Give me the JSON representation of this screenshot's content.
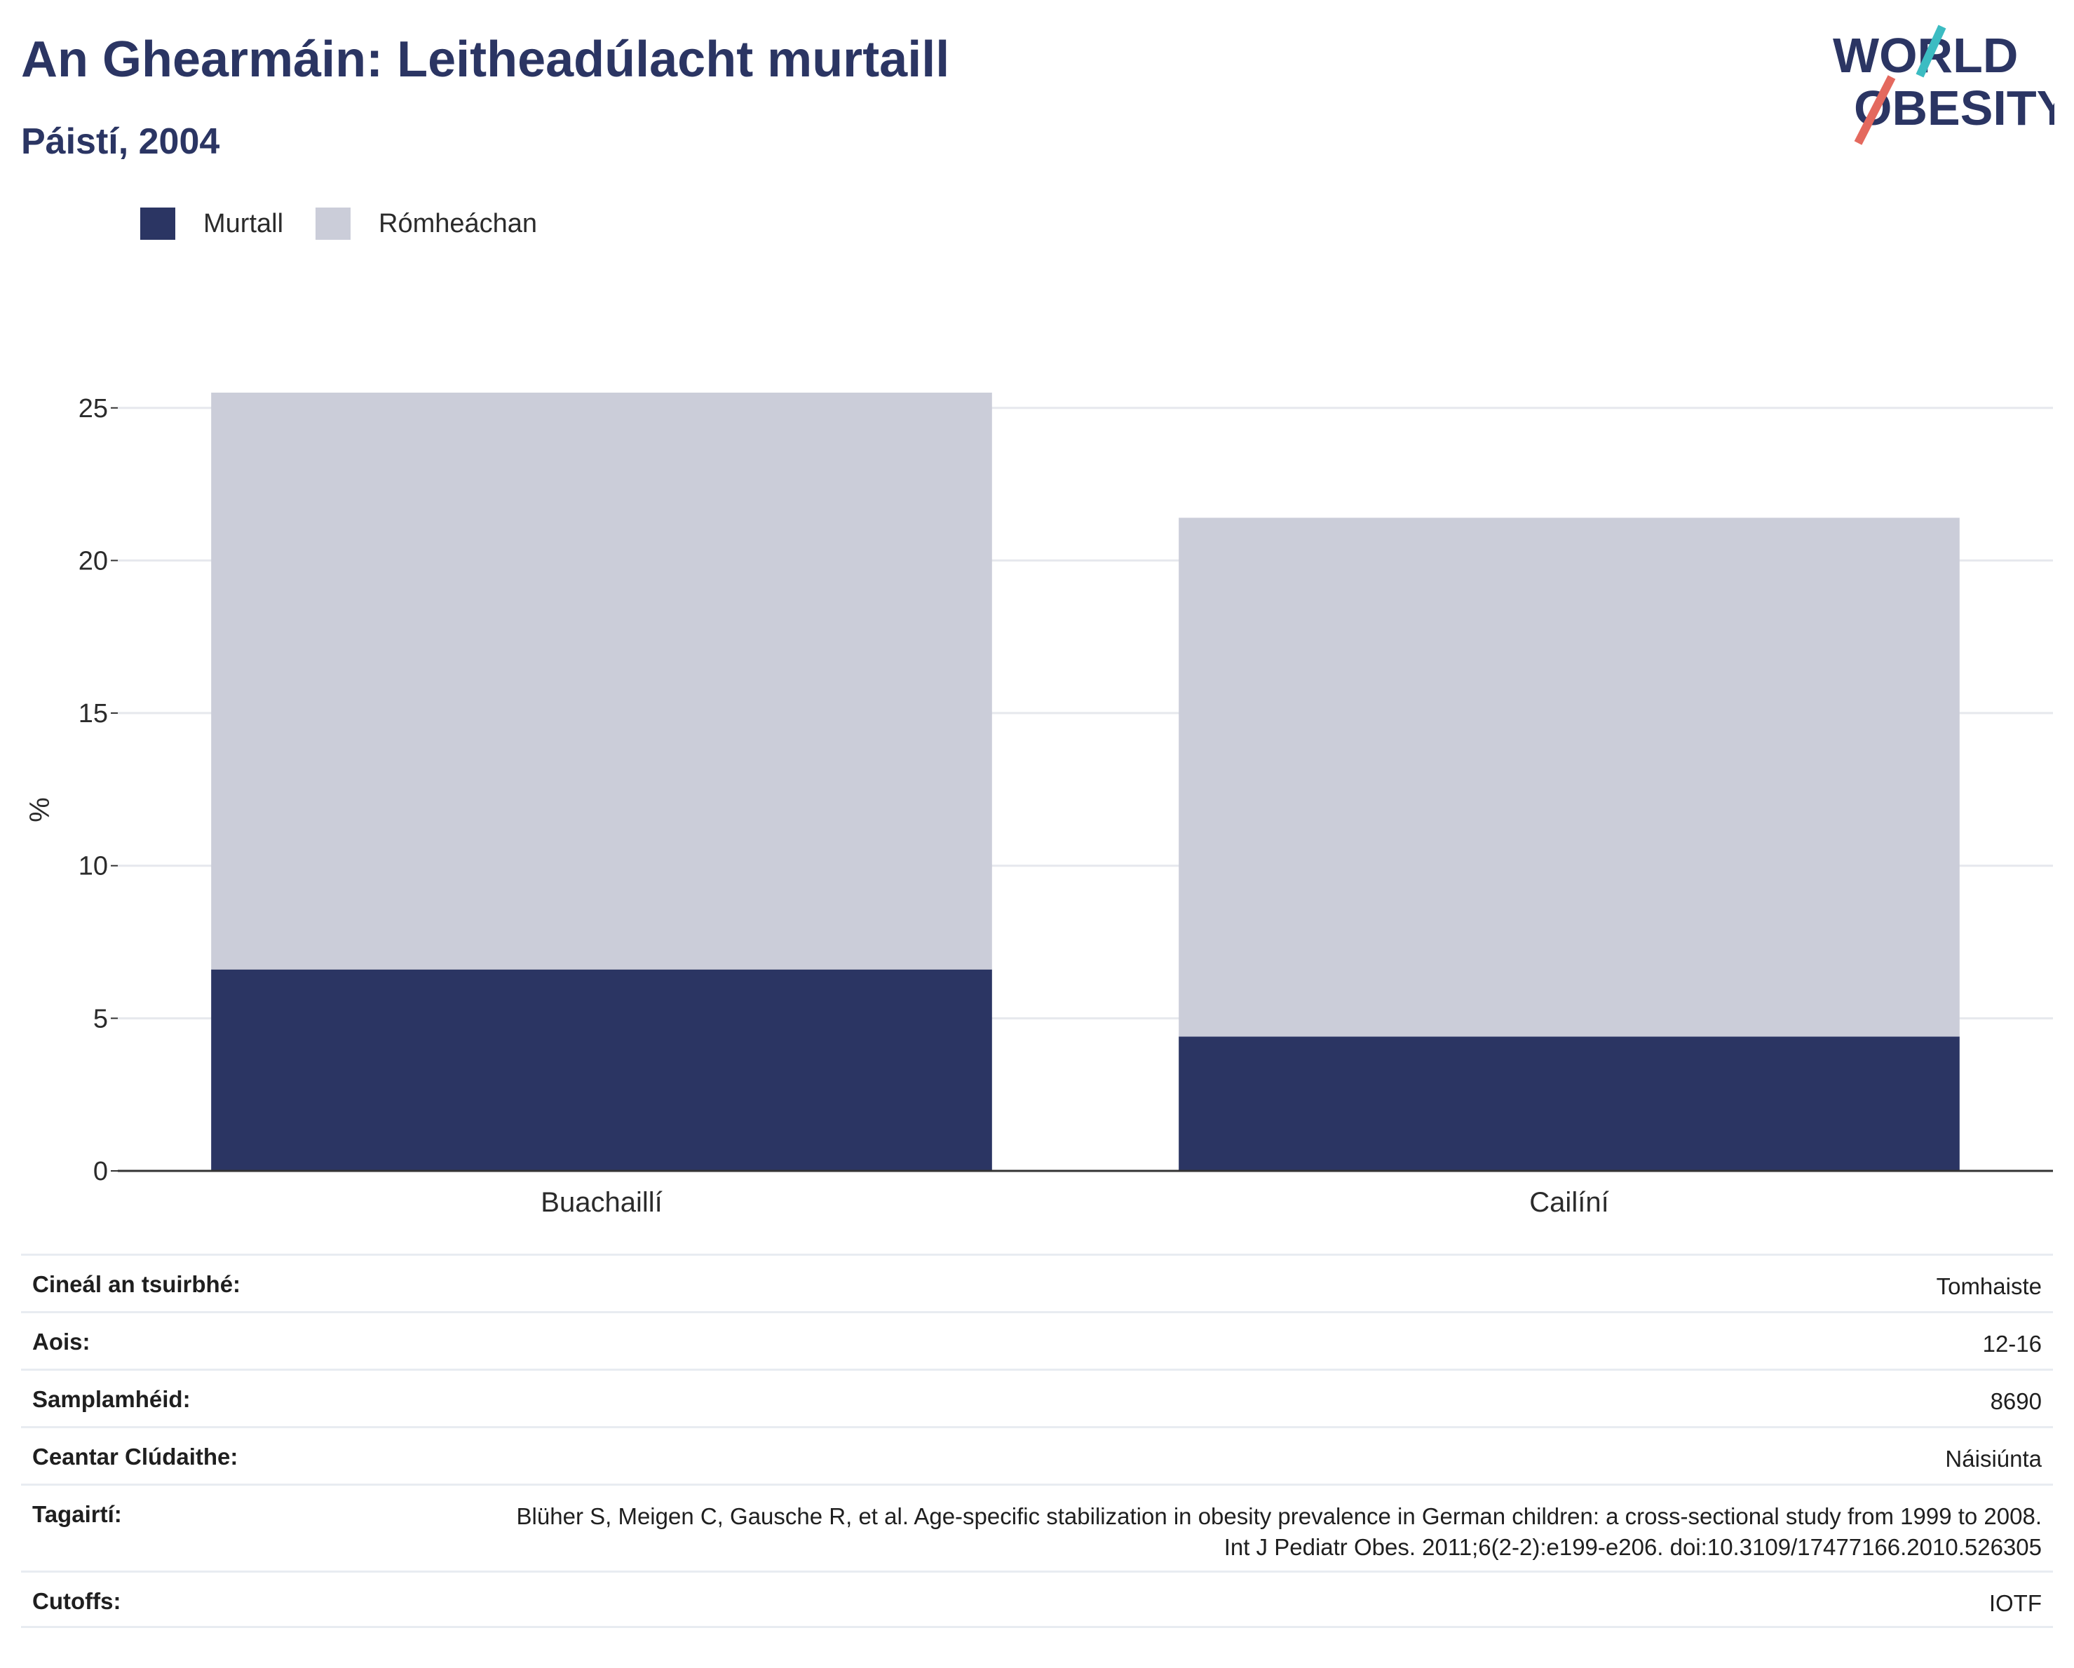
{
  "header": {
    "title": "An Ghearmáin: Leitheadúlacht murtaill",
    "subtitle": "Páistí, 2004"
  },
  "logo": {
    "line1": "WORLD",
    "line2": "OBESITY"
  },
  "colors": {
    "obese": "#2b3563",
    "overweight": "#cbcdd9",
    "accent_teal": "#3cbcc2",
    "accent_red": "#e4695e"
  },
  "chart_data": {
    "type": "bar",
    "stacked": true,
    "categories": [
      "Buachaillí",
      "Cailíní"
    ],
    "series": [
      {
        "name": "Murtall",
        "values": [
          6.6,
          4.4
        ]
      },
      {
        "name": "Rómheáchan",
        "values": [
          18.9,
          17.0
        ]
      }
    ],
    "ylabel": "%",
    "ylim": [
      0,
      25.5
    ],
    "yticks": [
      0,
      5,
      10,
      15,
      20,
      25
    ],
    "grid": true,
    "legend": "top-left"
  },
  "meta": [
    {
      "label": "Cineál an tsuirbhé:",
      "value": "Tomhaiste"
    },
    {
      "label": "Aois:",
      "value": "12-16"
    },
    {
      "label": "Samplamhéid:",
      "value": "8690"
    },
    {
      "label": "Ceantar Clúdaithe:",
      "value": "Náisiúnta"
    },
    {
      "label": "Tagairtí:",
      "value": "Blüher S, Meigen C, Gausche R, et al. Age-specific stabilization in obesity prevalence in German children: a cross-sectional study from 1999 to 2008. Int J Pediatr Obes. 2011;6(2-2):e199-e206. doi:10.3109/17477166.2010.526305"
    },
    {
      "label": "Cutoffs:",
      "value": "IOTF"
    }
  ]
}
